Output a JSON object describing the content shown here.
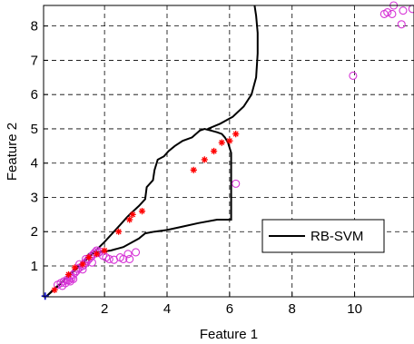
{
  "chart_data": {
    "type": "scatter",
    "xlabel": "Feature 1",
    "ylabel": "Feature 2",
    "xlim": [
      0.05,
      11.9
    ],
    "ylim": [
      0.1,
      8.6
    ],
    "x_ticks": [
      "2",
      "4",
      "6",
      "8",
      "10"
    ],
    "x_tick_values": [
      2,
      4,
      6,
      8,
      10
    ],
    "y_ticks": [
      "1",
      "2",
      "3",
      "4",
      "5",
      "6",
      "7",
      "8"
    ],
    "y_tick_values": [
      1,
      2,
      3,
      4,
      5,
      6,
      7,
      8
    ],
    "grid": true,
    "legend": {
      "entries": [
        "RB-SVM"
      ],
      "placement": "lower-right"
    },
    "colors": {
      "boundary": "#000000",
      "circles": "#d633d6",
      "stars": "#ff0000",
      "cross": "#1010cc"
    },
    "circles": [
      [
        0.5,
        0.45
      ],
      [
        0.6,
        0.5
      ],
      [
        0.65,
        0.42
      ],
      [
        0.7,
        0.55
      ],
      [
        0.75,
        0.5
      ],
      [
        0.8,
        0.6
      ],
      [
        0.85,
        0.58
      ],
      [
        0.9,
        0.7
      ],
      [
        0.95,
        0.65
      ],
      [
        1.0,
        0.62
      ],
      [
        1.05,
        0.8
      ],
      [
        1.1,
        0.85
      ],
      [
        1.15,
        0.92
      ],
      [
        1.2,
        0.95
      ],
      [
        1.3,
        1.0
      ],
      [
        1.35,
        1.05
      ],
      [
        1.4,
        1.1
      ],
      [
        1.45,
        1.15
      ],
      [
        1.5,
        1.2
      ],
      [
        1.55,
        1.25
      ],
      [
        1.6,
        1.3
      ],
      [
        1.65,
        1.35
      ],
      [
        1.7,
        1.4
      ],
      [
        1.75,
        1.45
      ],
      [
        1.8,
        1.38
      ],
      [
        1.85,
        1.42
      ],
      [
        1.95,
        1.3
      ],
      [
        2.05,
        1.25
      ],
      [
        2.15,
        1.2
      ],
      [
        2.3,
        1.18
      ],
      [
        2.5,
        1.25
      ],
      [
        2.6,
        1.2
      ],
      [
        2.75,
        1.35
      ],
      [
        2.8,
        1.2
      ],
      [
        3.0,
        1.4
      ],
      [
        1.2,
        1.05
      ],
      [
        1.4,
        1.2
      ],
      [
        1.6,
        1.1
      ],
      [
        1.3,
        0.9
      ],
      [
        1.0,
        0.75
      ],
      [
        0.9,
        0.55
      ],
      [
        6.2,
        3.4
      ],
      [
        9.95,
        6.55
      ],
      [
        10.95,
        8.35
      ],
      [
        11.05,
        8.4
      ],
      [
        11.2,
        8.35
      ],
      [
        11.25,
        8.6
      ],
      [
        11.5,
        8.05
      ],
      [
        11.55,
        8.45
      ],
      [
        11.85,
        8.5
      ]
    ],
    "stars": [
      [
        0.4,
        0.3
      ],
      [
        0.85,
        0.75
      ],
      [
        1.05,
        0.95
      ],
      [
        1.3,
        1.05
      ],
      [
        1.5,
        1.25
      ],
      [
        1.75,
        1.35
      ],
      [
        2.0,
        1.45
      ],
      [
        2.45,
        2.0
      ],
      [
        2.8,
        2.35
      ],
      [
        2.9,
        2.5
      ],
      [
        3.2,
        2.6
      ],
      [
        4.85,
        3.8
      ],
      [
        5.2,
        4.1
      ],
      [
        5.5,
        4.35
      ],
      [
        5.75,
        4.6
      ],
      [
        6.0,
        4.65
      ],
      [
        6.2,
        4.85
      ]
    ],
    "cross": [
      0.1,
      0.12
    ],
    "boundary": [
      [
        0.15,
        0.12
      ],
      [
        0.5,
        0.4
      ],
      [
        1.0,
        0.85
      ],
      [
        1.5,
        1.25
      ],
      [
        2.0,
        1.7
      ],
      [
        2.5,
        2.2
      ],
      [
        2.7,
        2.4
      ],
      [
        2.8,
        2.5
      ],
      [
        3.1,
        2.75
      ],
      [
        3.3,
        2.95
      ],
      [
        3.35,
        3.3
      ],
      [
        3.55,
        3.5
      ],
      [
        3.6,
        3.8
      ],
      [
        3.7,
        4.1
      ],
      [
        3.9,
        4.2
      ],
      [
        4.05,
        4.35
      ],
      [
        4.25,
        4.5
      ],
      [
        4.5,
        4.65
      ],
      [
        4.8,
        4.75
      ],
      [
        5.05,
        4.95
      ],
      [
        5.2,
        5.0
      ],
      [
        5.4,
        4.95
      ],
      [
        5.6,
        4.9
      ],
      [
        5.75,
        4.85
      ],
      [
        5.85,
        4.75
      ],
      [
        5.95,
        4.6
      ],
      [
        6.05,
        4.3
      ],
      [
        6.05,
        3.9
      ],
      [
        6.05,
        3.0
      ],
      [
        6.05,
        2.35
      ],
      [
        5.6,
        2.35
      ],
      [
        5.0,
        2.25
      ],
      [
        4.5,
        2.15
      ],
      [
        4.0,
        2.05
      ],
      [
        3.6,
        2.0
      ],
      [
        3.3,
        1.95
      ],
      [
        3.1,
        1.8
      ],
      [
        2.6,
        1.55
      ],
      [
        2.2,
        1.45
      ],
      [
        1.8,
        1.4
      ],
      [
        1.5,
        1.35
      ],
      [
        1.2,
        1.0
      ],
      [
        0.9,
        0.75
      ],
      [
        0.6,
        0.5
      ],
      [
        0.3,
        0.25
      ],
      [
        0.15,
        0.12
      ]
    ],
    "boundary_branch": [
      [
        5.3,
        5.0
      ],
      [
        5.7,
        5.15
      ],
      [
        6.1,
        5.35
      ],
      [
        6.45,
        5.65
      ],
      [
        6.7,
        6.0
      ],
      [
        6.85,
        6.5
      ],
      [
        6.9,
        7.2
      ],
      [
        6.9,
        7.8
      ],
      [
        6.85,
        8.3
      ],
      [
        6.8,
        8.6
      ]
    ]
  }
}
